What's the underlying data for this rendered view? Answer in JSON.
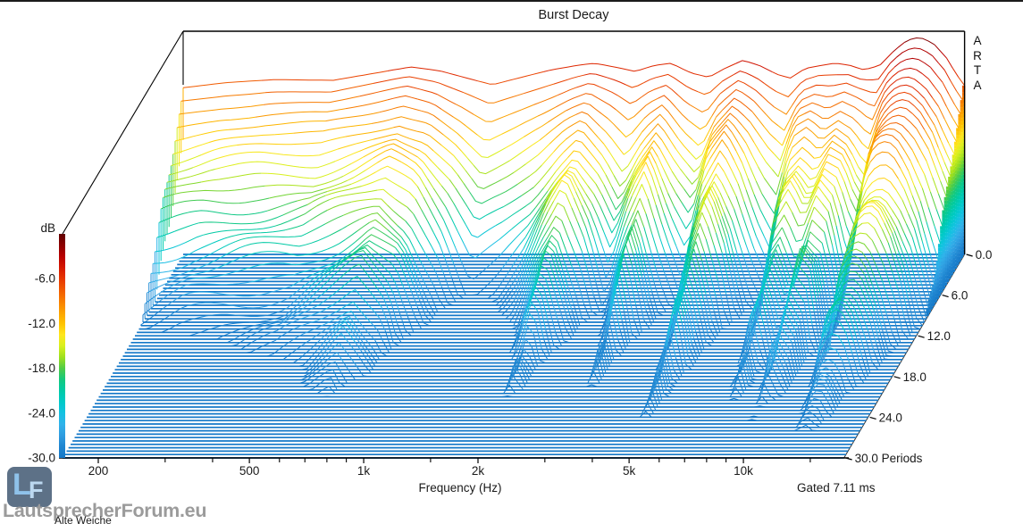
{
  "header": {
    "title": "Burst Decay"
  },
  "brand_vertical": "ARTA",
  "axes": {
    "db_label": "dB",
    "freq_label": "Frequency (Hz)",
    "gated_label": "Gated 7.11 ms"
  },
  "watermark": {
    "site": "LautsprecherForum.eu",
    "note": "Alte Weiche",
    "logo_l": "L",
    "logo_f": "F"
  },
  "chart_data": {
    "type": "waterfall_3d",
    "title": "Burst Decay",
    "xlabel": "Frequency (Hz)",
    "annotation": "Gated 7.11 ms",
    "axis_ranges": {
      "freq_hz": [
        161,
        18400
      ],
      "db": [
        -30,
        0
      ],
      "periods": [
        0,
        30
      ]
    },
    "periods_step": 0.5,
    "floor_db": -30,
    "freq_ticks_major": [
      {
        "f": 200,
        "label": "200"
      },
      {
        "f": 500,
        "label": "500"
      },
      {
        "f": 1000,
        "label": "1k"
      },
      {
        "f": 2000,
        "label": "2k"
      },
      {
        "f": 5000,
        "label": "5k"
      },
      {
        "f": 10000,
        "label": "10k"
      }
    ],
    "freq_ticks_minor": [
      300,
      400,
      600,
      700,
      800,
      900,
      1500,
      3000,
      4000,
      6000,
      7000,
      8000,
      9000,
      15000
    ],
    "db_ticks": [
      {
        "db": -6,
        "label": "-6.0"
      },
      {
        "db": -12,
        "label": "-12.0"
      },
      {
        "db": -18,
        "label": "-18.0"
      },
      {
        "db": -24,
        "label": "-24.0"
      },
      {
        "db": -30,
        "label": "-30.0"
      }
    ],
    "period_ticks": [
      {
        "p": 0,
        "label": "0.0"
      },
      {
        "p": 6,
        "label": "6.0"
      },
      {
        "p": 12,
        "label": "12.0"
      },
      {
        "p": 18,
        "label": "18.0"
      },
      {
        "p": 24,
        "label": "24.0"
      },
      {
        "p": 30,
        "label": "30.0 Periods"
      }
    ],
    "colormap": [
      [
        0,
        "#5f0000"
      ],
      [
        -1.5,
        "#8c0000"
      ],
      [
        -3,
        "#b80000"
      ],
      [
        -4.5,
        "#d51700"
      ],
      [
        -6,
        "#e73600"
      ],
      [
        -7.5,
        "#f15a00"
      ],
      [
        -9,
        "#f87e00"
      ],
      [
        -10.5,
        "#fca200"
      ],
      [
        -12,
        "#ffc300"
      ],
      [
        -13.5,
        "#ffe61e"
      ],
      [
        -15,
        "#d9f01e"
      ],
      [
        -16.5,
        "#9fe01e"
      ],
      [
        -18,
        "#50cc46"
      ],
      [
        -19.5,
        "#14c97e"
      ],
      [
        -21,
        "#00caa6"
      ],
      [
        -22.5,
        "#00cac8"
      ],
      [
        -24,
        "#14c2e2"
      ],
      [
        -25.5,
        "#30b2ea"
      ],
      [
        -27,
        "#2f9ce0"
      ],
      [
        -28.5,
        "#1f85d0"
      ],
      [
        -30,
        "#1478c8"
      ]
    ],
    "surface_profile": {
      "f": [
        161,
        210,
        280,
        400,
        520,
        640,
        760,
        900,
        1050,
        1250,
        1500,
        1750,
        1950,
        2250,
        2500,
        2800,
        3100,
        3500,
        3900,
        4300,
        4800,
        5300,
        5900,
        6400,
        7000,
        7700,
        8400,
        9200,
        10000,
        11000,
        12000,
        13000,
        14000,
        15200,
        16500,
        17500,
        18400
      ],
      "rear_db": [
        -7.6,
        -6.9,
        -6.5,
        -6.6,
        -5.6,
        -4.8,
        -5.3,
        -6.3,
        -7.2,
        -6.2,
        -5.2,
        -4.6,
        -4.3,
        -4.9,
        -5.4,
        -4.6,
        -4.3,
        -5.6,
        -6.2,
        -5.0,
        -3.9,
        -4.6,
        -5.8,
        -6.3,
        -5.0,
        -4.6,
        -4.3,
        -4.6,
        -5.2,
        -4.6,
        -2.6,
        -1.2,
        -0.8,
        -1.6,
        -3.6,
        -5.8,
        -7.3
      ],
      "decay_db_per_period": [
        1.9,
        1.7,
        1.6,
        1.45,
        1.25,
        1.05,
        1.35,
        2.2,
        3.4,
        3.0,
        2.4,
        1.5,
        1.05,
        1.9,
        2.9,
        1.8,
        1.15,
        2.2,
        3.0,
        1.5,
        0.95,
        1.6,
        2.6,
        3.2,
        1.4,
        1.05,
        1.6,
        0.95,
        1.1,
        2.3,
        1.1,
        1.0,
        1.05,
        1.3,
        1.6,
        1.9,
        2.2
      ]
    },
    "settle": {
      "extra_db": 2.2,
      "tau_periods": 2.5
    },
    "noise": {
      "amp_db": 0.9
    }
  }
}
